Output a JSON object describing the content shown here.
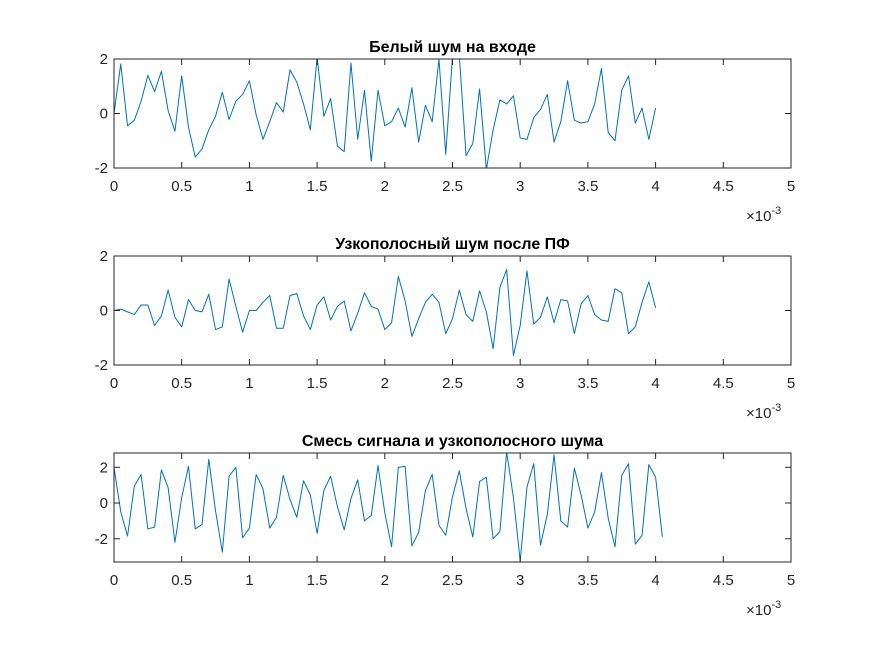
{
  "figure": {
    "background": "#ffffff",
    "axes_color": "#262626",
    "line_color": "#0072BD"
  },
  "chart_data": [
    {
      "type": "line",
      "title": "Белый шум на входе",
      "xlabel": "",
      "ylabel": "",
      "xlim": [
        0,
        0.005
      ],
      "ylim": [
        -2,
        2
      ],
      "xticks": [
        0,
        0.0005,
        0.001,
        0.0015,
        0.002,
        0.0025,
        0.003,
        0.0035,
        0.004,
        0.0045,
        0.005
      ],
      "xtick_labels": [
        "0",
        "0.5",
        "1",
        "1.5",
        "2",
        "2.5",
        "3",
        "3.5",
        "4",
        "4.5",
        "5"
      ],
      "yticks": [
        -2,
        0,
        2
      ],
      "ytick_labels": [
        "-2",
        "0",
        "2"
      ],
      "x_exponent": {
        "base": "×10",
        "power": "-3"
      },
      "x_step": 5e-05,
      "series": [
        {
          "color": "#0072BD",
          "values": [
            0,
            1.82,
            -0.45,
            -0.25,
            0.45,
            1.4,
            0.8,
            1.55,
            0.1,
            -0.65,
            1.38,
            -0.5,
            -1.6,
            -1.3,
            -0.6,
            -0.1,
            0.78,
            -0.22,
            0.45,
            0.7,
            1.2,
            -0.05,
            -0.95,
            -0.3,
            0.4,
            0.05,
            1.6,
            1.15,
            0.35,
            -0.6,
            2.05,
            -0.1,
            0.55,
            -1.2,
            -1.4,
            1.85,
            -0.95,
            0.85,
            -1.75,
            0.85,
            -0.45,
            -0.3,
            0.2,
            -0.5,
            0.95,
            -1.05,
            0.3,
            -0.3,
            2.0,
            -1.5,
            2.1,
            2.15,
            -1.55,
            -1.1,
            0.9,
            -2.05,
            -0.6,
            0.5,
            0.35,
            0.65,
            -0.9,
            -0.95,
            -0.15,
            0.15,
            0.7,
            -1.05,
            -0.3,
            1.2,
            -0.25,
            -0.35,
            -0.3,
            0.35,
            1.65,
            -0.7,
            -1.0,
            0.85,
            1.38,
            -0.35,
            0.2,
            -0.95,
            0.2
          ]
        }
      ]
    },
    {
      "type": "line",
      "title": "Узкополосный шум после ПФ",
      "xlabel": "",
      "ylabel": "",
      "xlim": [
        0,
        0.005
      ],
      "ylim": [
        -2,
        2
      ],
      "xticks": [
        0,
        0.0005,
        0.001,
        0.0015,
        0.002,
        0.0025,
        0.003,
        0.0035,
        0.004,
        0.0045,
        0.005
      ],
      "xtick_labels": [
        "0",
        "0.5",
        "1",
        "1.5",
        "2",
        "2.5",
        "3",
        "3.5",
        "4",
        "4.5",
        "5"
      ],
      "yticks": [
        -2,
        0,
        2
      ],
      "ytick_labels": [
        "-2",
        "0",
        "2"
      ],
      "x_exponent": {
        "base": "×10",
        "power": "-3"
      },
      "x_step": 5e-05,
      "series": [
        {
          "color": "#0072BD",
          "values": [
            0,
            0.05,
            -0.05,
            -0.15,
            0.2,
            0.2,
            -0.55,
            -0.2,
            0.75,
            -0.25,
            -0.6,
            0.4,
            0.0,
            -0.05,
            0.6,
            -0.7,
            -0.6,
            1.15,
            0.15,
            -0.8,
            0.0,
            0.0,
            0.3,
            0.55,
            -0.65,
            -0.65,
            0.55,
            0.62,
            -0.2,
            -0.7,
            0.2,
            0.5,
            -0.35,
            0.15,
            0.35,
            -0.75,
            -0.1,
            0.65,
            0.15,
            0.05,
            -0.7,
            -0.45,
            1.25,
            0.35,
            -0.95,
            -0.3,
            0.3,
            0.6,
            0.3,
            -0.85,
            -0.3,
            0.75,
            -0.15,
            -0.4,
            0.72,
            -0.05,
            -1.4,
            0.85,
            1.5,
            -1.65,
            -0.55,
            1.45,
            -0.5,
            -0.25,
            0.5,
            -0.45,
            0.4,
            0.35,
            -0.85,
            0.25,
            0.55,
            -0.15,
            -0.35,
            -0.4,
            0.8,
            0.65,
            -0.85,
            -0.6,
            0.3,
            1.05,
            0.1
          ]
        }
      ]
    },
    {
      "type": "line",
      "title": "Смесь сигнала и узкополосного шума",
      "xlabel": "",
      "ylabel": "",
      "xlim": [
        0,
        0.005
      ],
      "ylim": [
        -3.3,
        2.8
      ],
      "xticks": [
        0,
        0.0005,
        0.001,
        0.0015,
        0.002,
        0.0025,
        0.003,
        0.0035,
        0.004,
        0.0045,
        0.005
      ],
      "xtick_labels": [
        "0",
        "0.5",
        "1",
        "1.5",
        "2",
        "2.5",
        "3",
        "3.5",
        "4",
        "4.5",
        "5"
      ],
      "yticks": [
        -2,
        0,
        2
      ],
      "ytick_labels": [
        "-2",
        "0",
        "2"
      ],
      "x_exponent": {
        "base": "×10",
        "power": "-3"
      },
      "x_step": 5e-05,
      "series": [
        {
          "color": "#0072BD",
          "values": [
            2.0,
            -0.5,
            -1.85,
            0.95,
            1.6,
            -1.45,
            -1.35,
            1.85,
            0.85,
            -2.2,
            0.3,
            2.05,
            -1.45,
            -1.2,
            2.45,
            -0.45,
            -2.75,
            1.5,
            2.0,
            -1.95,
            -1.4,
            1.6,
            0.8,
            -1.4,
            -0.8,
            1.55,
            0.2,
            -0.8,
            1.25,
            0.45,
            -1.7,
            0.7,
            1.5,
            -0.2,
            -1.5,
            0.25,
            1.3,
            -1.0,
            -0.7,
            2.1,
            -0.55,
            -2.45,
            2.0,
            2.05,
            -2.4,
            -1.65,
            0.7,
            1.6,
            -1.25,
            -1.8,
            0.35,
            1.8,
            -0.3,
            -1.9,
            1.2,
            1.45,
            -2.0,
            -1.6,
            2.85,
            0.3,
            -3.25,
            0.9,
            2.2,
            -2.35,
            -0.65,
            2.7,
            -1.0,
            -1.35,
            1.95,
            0.45,
            -1.4,
            -0.5,
            1.7,
            -0.85,
            -2.45,
            1.55,
            2.2,
            -2.3,
            -1.8,
            2.15,
            1.45,
            -1.9
          ]
        }
      ]
    }
  ]
}
